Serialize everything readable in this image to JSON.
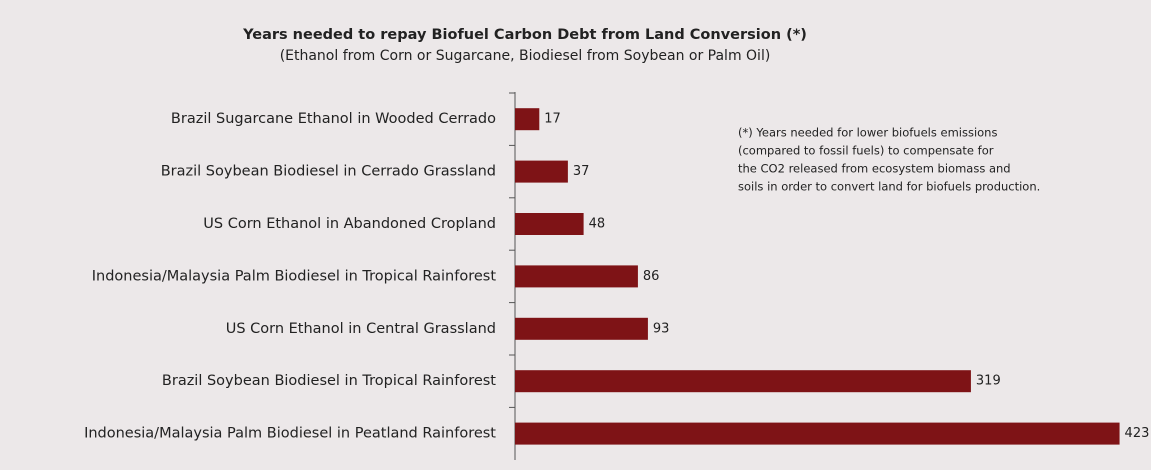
{
  "chart_data": {
    "type": "barh",
    "title": "Years needed to repay Biofuel Carbon Debt from Land Conversion (*)",
    "subtitle": "(Ethanol from Corn or Sugarcane, Biodiesel from Soybean or Palm Oil)",
    "categories": [
      "Brazil Sugarcane Ethanol in Wooded Cerrado",
      "Brazil Soybean Biodiesel in Cerrado Grassland",
      "US Corn Ethanol in Abandoned Cropland",
      "Indonesia/Malaysia Palm Biodiesel in Tropical Rainforest",
      "US Corn Ethanol in Central Grassland",
      "Brazil Soybean Biodiesel in Tropical Rainforest",
      "Indonesia/Malaysia Palm Biodiesel in Peatland Rainforest"
    ],
    "values": [
      17,
      37,
      48,
      86,
      93,
      319,
      423
    ],
    "color": "#7e1316",
    "xlim": [
      0,
      445
    ],
    "annotation": [
      "(*) Years needed for lower biofuels emissions",
      "(compared to fossil fuels) to compensate for",
      "the CO2 released from ecosystem biomass and",
      "soils in order to convert land for biofuels production."
    ]
  }
}
